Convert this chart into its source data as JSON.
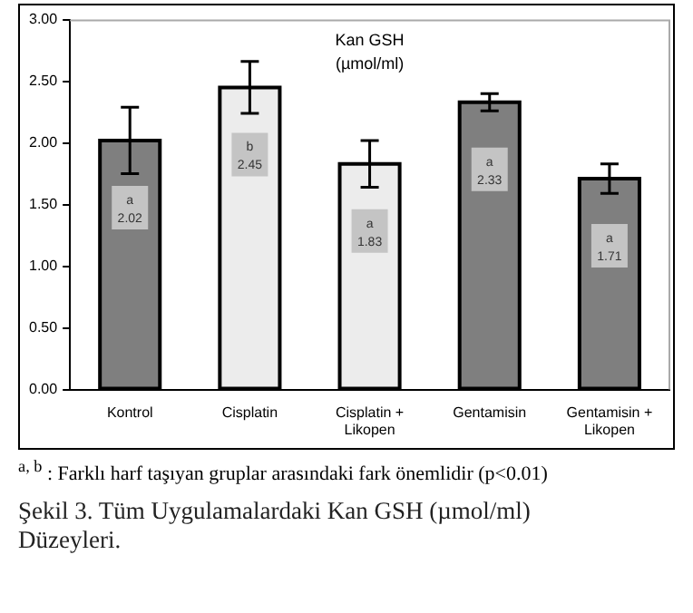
{
  "chart_data": {
    "type": "bar",
    "title": "Kan GSH",
    "subtitle": "(µmol/ml)",
    "categories": [
      "Kontrol",
      "Cisplatin",
      "Cisplatin + Likopen",
      "Gentamisin",
      "Gentamisin + Likopen"
    ],
    "values": [
      2.02,
      2.45,
      1.83,
      2.33,
      1.71
    ],
    "colors": [
      "#7f7f7f",
      "#ececec",
      "#ececec",
      "#7f7f7f",
      "#7f7f7f"
    ],
    "errors": [
      0.27,
      0.21,
      0.19,
      0.07,
      0.12
    ],
    "value_labels": [
      "a\n2.02",
      "b\n2.45",
      "a\n1.83",
      "a\n2.33",
      "a\n1.71"
    ],
    "ylim": [
      0,
      3
    ],
    "yticks": [
      {
        "value": 0,
        "label": "0.00"
      },
      {
        "value": 0.5,
        "label": "0.50"
      },
      {
        "value": 1,
        "label": "1.00"
      },
      {
        "value": 1.5,
        "label": "1.50"
      },
      {
        "value": 2,
        "label": "2.00"
      },
      {
        "value": 2.5,
        "label": "2.50"
      },
      {
        "value": 3,
        "label": "3.00"
      }
    ],
    "grid": false,
    "legend": false,
    "annotations": [
      "$^{a, b}$ : Farklı harf taşıyan gruplar arasındaki fark önemlidir (p<0.01)",
      "Şekil 3. Tüm Uygulamalardaki Kan GSH (µmol/ml) Düzeyleri."
    ]
  }
}
